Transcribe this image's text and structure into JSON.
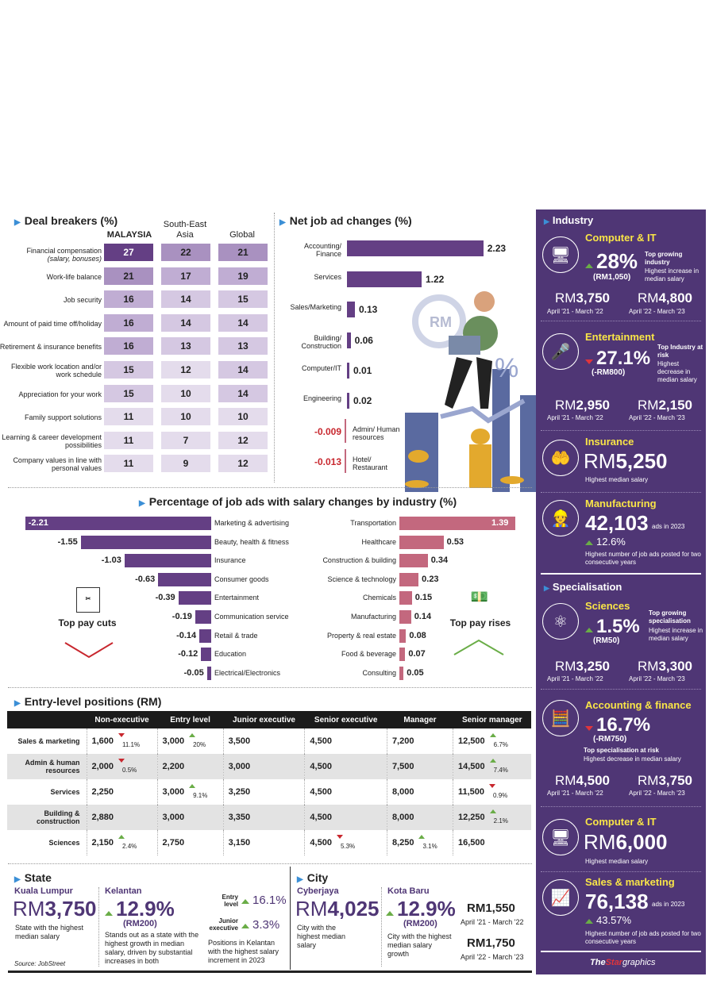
{
  "deal_breakers": {
    "title": "Deal breakers (%)",
    "cols": [
      "MALAYSIA",
      "South-East Asia",
      "Global"
    ],
    "rows": [
      {
        "label": "Financial compensation",
        "sub": "(salary, bonuses)",
        "v": [
          27,
          22,
          21
        ]
      },
      {
        "label": "Work-life balance",
        "sub": "",
        "v": [
          21,
          17,
          19
        ]
      },
      {
        "label": "Job security",
        "sub": "",
        "v": [
          16,
          14,
          15
        ]
      },
      {
        "label": "Amount of paid time off/holiday",
        "sub": "",
        "v": [
          16,
          14,
          14
        ]
      },
      {
        "label": "Retirement & insurance benefits",
        "sub": "",
        "v": [
          16,
          13,
          13
        ]
      },
      {
        "label": "Flexible work location and/or work schedule",
        "sub": "",
        "v": [
          15,
          12,
          14
        ]
      },
      {
        "label": "Appreciation for your work",
        "sub": "",
        "v": [
          15,
          10,
          14
        ]
      },
      {
        "label": "Family support solutions",
        "sub": "",
        "v": [
          11,
          10,
          10
        ]
      },
      {
        "label": "Learning & career development possibilities",
        "sub": "",
        "v": [
          11,
          7,
          12
        ]
      },
      {
        "label": "Company values in line with personal values",
        "sub": "",
        "v": [
          11,
          9,
          12
        ]
      }
    ]
  },
  "net_job": {
    "title": "Net job ad changes (%)",
    "items": [
      {
        "label": "Accounting/ Finance",
        "v": "2.23",
        "n": 2.23
      },
      {
        "label": "Services",
        "v": "1.22",
        "n": 1.22
      },
      {
        "label": "Sales/Marketing",
        "v": "0.13",
        "n": 0.13
      },
      {
        "label": "Building/ Construction",
        "v": "0.06",
        "n": 0.06
      },
      {
        "label": "Computer/IT",
        "v": "0.01",
        "n": 0.01
      },
      {
        "label": "Engineering",
        "v": "0.02",
        "n": 0.02
      },
      {
        "label": "Admin/ Human resources",
        "v": "-0.009",
        "n": -0.009
      },
      {
        "label": "Hotel/ Restaurant",
        "v": "-0.013",
        "n": -0.013
      }
    ]
  },
  "pct": {
    "title": "Percentage of job ads with salary changes by industry (%)",
    "cuts_label": "Top pay cuts",
    "rises_label": "Top pay rises",
    "cuts": [
      {
        "label": "Marketing & advertising",
        "v": "-2.21",
        "n": 2.21
      },
      {
        "label": "Beauty, health & fitness",
        "v": "-1.55",
        "n": 1.55
      },
      {
        "label": "Insurance",
        "v": "-1.03",
        "n": 1.03
      },
      {
        "label": "Consumer goods",
        "v": "-0.63",
        "n": 0.63
      },
      {
        "label": "Entertainment",
        "v": "-0.39",
        "n": 0.39
      },
      {
        "label": "Communication service",
        "v": "-0.19",
        "n": 0.19
      },
      {
        "label": "Retail & trade",
        "v": "-0.14",
        "n": 0.14
      },
      {
        "label": "Education",
        "v": "-0.12",
        "n": 0.12
      },
      {
        "label": "Electrical/Electronics",
        "v": "-0.05",
        "n": 0.05
      }
    ],
    "rises": [
      {
        "label": "Transportation",
        "v": "1.39",
        "n": 1.39
      },
      {
        "label": "Healthcare",
        "v": "0.53",
        "n": 0.53
      },
      {
        "label": "Construction & building",
        "v": "0.34",
        "n": 0.34
      },
      {
        "label": "Science & technology",
        "v": "0.23",
        "n": 0.23
      },
      {
        "label": "Chemicals",
        "v": "0.15",
        "n": 0.15
      },
      {
        "label": "Manufacturing",
        "v": "0.14",
        "n": 0.14
      },
      {
        "label": "Property & real estate",
        "v": "0.08",
        "n": 0.08
      },
      {
        "label": "Food & beverage",
        "v": "0.07",
        "n": 0.07
      },
      {
        "label": "Consulting",
        "v": "0.05",
        "n": 0.05
      }
    ]
  },
  "entry": {
    "title": "Entry-level positions (RM)",
    "headers": [
      "",
      "Non-executive",
      "Entry level",
      "Junior executive",
      "Senior executive",
      "Manager",
      "Senior manager"
    ],
    "rows": [
      {
        "label": "Sales & marketing",
        "cells": [
          [
            "1,600",
            "11.1%",
            "dn"
          ],
          [
            "3,000",
            "20%",
            "up"
          ],
          [
            "3,500",
            "",
            ""
          ],
          [
            "4,500",
            "",
            ""
          ],
          [
            "7,200",
            "",
            ""
          ],
          [
            "12,500",
            "6.7%",
            "up"
          ]
        ]
      },
      {
        "label": "Admin & human resources",
        "cells": [
          [
            "2,000",
            "0.5%",
            "dn"
          ],
          [
            "2,200",
            "",
            ""
          ],
          [
            "3,000",
            "",
            ""
          ],
          [
            "4,500",
            "",
            ""
          ],
          [
            "7,500",
            "",
            ""
          ],
          [
            "14,500",
            "7.4%",
            "up"
          ]
        ]
      },
      {
        "label": "Services",
        "cells": [
          [
            "2,250",
            "",
            ""
          ],
          [
            "3,000",
            "9.1%",
            "up"
          ],
          [
            "3,250",
            "",
            ""
          ],
          [
            "4,500",
            "",
            ""
          ],
          [
            "8,000",
            "",
            ""
          ],
          [
            "11,500",
            "0.9%",
            "dn"
          ]
        ]
      },
      {
        "label": "Building & construction",
        "cells": [
          [
            "2,880",
            "",
            ""
          ],
          [
            "3,000",
            "",
            ""
          ],
          [
            "3,350",
            "",
            ""
          ],
          [
            "4,500",
            "",
            ""
          ],
          [
            "8,000",
            "",
            ""
          ],
          [
            "12,250",
            "2.1%",
            "up"
          ]
        ]
      },
      {
        "label": "Sciences",
        "cells": [
          [
            "2,150",
            "2.4%",
            "up"
          ],
          [
            "2,750",
            "",
            ""
          ],
          [
            "3,150",
            "",
            ""
          ],
          [
            "4,500",
            "5.3%",
            "dn"
          ],
          [
            "8,250",
            "3.1%",
            "up"
          ],
          [
            "16,500",
            "",
            ""
          ]
        ]
      }
    ]
  },
  "state": {
    "title": "State",
    "kl": "Kuala Lumpur",
    "kl_rm": "RM",
    "kl_val": "3,750",
    "kl_desc": "State with the highest median salary",
    "source": "Source: JobStreet",
    "kel": "Kelantan",
    "kel_pct": "12.9%",
    "kel_rm": "(RM200)",
    "kel_desc": "Stands out as a state with the highest growth in median salary, driven by substantial increases in both",
    "entry_l": "Entry level",
    "entry_pct": "16.1%",
    "jr_l": "Junior executive",
    "jr_pct": "3.3%",
    "pos_desc": "Positions in Kelantan with the highest salary increment in 2023"
  },
  "city": {
    "title": "City",
    "cy": "Cyberjaya",
    "cy_rm": "RM",
    "cy_val": "4,025",
    "cy_desc": "City with the highest median salary",
    "kb": "Kota Baru",
    "kb_pct": "12.9%",
    "kb_rm": "(RM200)",
    "kb_desc": "City with the highest median salary growth",
    "a": "RM1,550",
    "a_p": "April '21 - March '22",
    "b": "RM1,750",
    "b_p": "April '22 - March '23"
  },
  "industry": {
    "title": "Industry",
    "cit_t": "Computer & IT",
    "cit_pct": "28%",
    "cit_rm": "(RM1,050)",
    "cit_d1": "Top growing industry",
    "cit_d2": "Highest increase in median salary",
    "cit_a": "3,750",
    "cit_b": "4,800",
    "p1": "April '21 - March '22",
    "p2": "April '22 - March '23",
    "ent_t": "Entertainment",
    "ent_pct": "27.1%",
    "ent_rm": "(-RM800)",
    "ent_d1": "Top Industry at risk",
    "ent_d2": "Highest decrease in median salary",
    "ent_a": "2,950",
    "ent_b": "2,150",
    "ins_t": "Insurance",
    "ins_val": "5,250",
    "ins_d": "Highest median salary",
    "man_t": "Manufacturing",
    "man_val": "42,103",
    "man_ads": "ads in 2023",
    "man_pct": "12.6%",
    "man_d": "Highest number of job ads posted for two consecutive years"
  },
  "specialisation": {
    "title": "Specialisation",
    "sci_t": "Sciences",
    "sci_pct": "1.5%",
    "sci_rm": "(RM50)",
    "sci_d1": "Top growing specialisation",
    "sci_d2": "Highest increase in median salary",
    "sci_a": "3,250",
    "sci_b": "3,300",
    "acc_t": "Accounting & finance",
    "acc_pct": "16.7%",
    "acc_rm": "(-RM750)",
    "acc_d1": "Top specialisation at risk",
    "acc_d2": "Highest decrease in median salary",
    "acc_a": "4,500",
    "acc_b": "3,750",
    "cit2_t": "Computer & IT",
    "cit2_val": "6,000",
    "cit2_d": "Highest median salary",
    "sm_t": "Sales & marketing",
    "sm_val": "76,138",
    "sm_ads": "ads in 2023",
    "sm_pct": "43.57%",
    "sm_d": "Highest number of job ads posted for two consecutive years",
    "rm": "RM",
    "logo_the": "The",
    "logo_star": "Star",
    "logo_g": "graphics"
  },
  "colors": {
    "purple": "#643f84",
    "pink": "#c3687e",
    "panel": "#4f3675",
    "yellow": "#f9e547"
  }
}
